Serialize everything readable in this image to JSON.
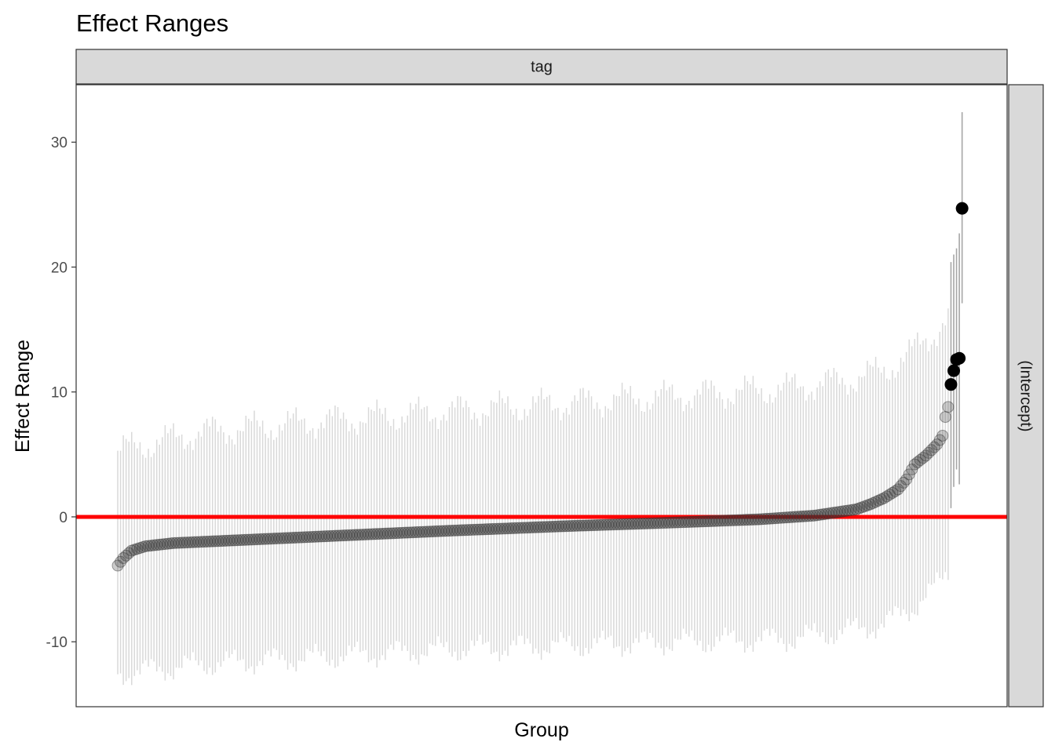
{
  "chart_data": {
    "type": "scatter",
    "title": "Effect Ranges",
    "xlabel": "Group",
    "ylabel": "Effect Range",
    "facet_top_label": "tag",
    "facet_right_label": "(Intercept)",
    "ylim": [
      -15.2,
      34.6
    ],
    "yticks": [
      -10,
      0,
      10,
      20,
      30
    ],
    "ytick_labels": [
      "-10",
      "0",
      "10",
      "20",
      "30"
    ],
    "reference_line": 0,
    "grid": false,
    "n_groups": 299,
    "series": [
      {
        "point_estimate_anchors": [
          [
            0,
            -3.9
          ],
          [
            2,
            -3.3
          ],
          [
            5,
            -2.7
          ],
          [
            10,
            -2.35
          ],
          [
            20,
            -2.1
          ],
          [
            40,
            -1.9
          ],
          [
            80,
            -1.5
          ],
          [
            120,
            -1.1
          ],
          [
            160,
            -0.75
          ],
          [
            200,
            -0.45
          ],
          [
            230,
            -0.2
          ],
          [
            250,
            0.1
          ],
          [
            265,
            0.6
          ],
          [
            270,
            1.0
          ],
          [
            275,
            1.5
          ],
          [
            280,
            2.2
          ],
          [
            283,
            3.0
          ],
          [
            286,
            4.2
          ],
          [
            290,
            4.9
          ],
          [
            294,
            5.8
          ],
          [
            296,
            6.5
          ],
          [
            297,
            8.0
          ],
          [
            298,
            8.8
          ]
        ],
        "interval_anchors": [
          [
            0,
            5.3,
            -12.6
          ],
          [
            30,
            6.8,
            -11.8
          ],
          [
            75,
            7.7,
            -11.2
          ],
          [
            120,
            8.5,
            -10.6
          ],
          [
            160,
            9.1,
            -10.3
          ],
          [
            200,
            9.7,
            -10.0
          ],
          [
            240,
            10.3,
            -9.8
          ],
          [
            260,
            10.9,
            -9.2
          ],
          [
            275,
            11.7,
            -8.6
          ],
          [
            285,
            13.2,
            -7.3
          ],
          [
            292,
            14.5,
            -6.0
          ],
          [
            298,
            16.0,
            -4.5
          ]
        ],
        "color": "#333333"
      },
      {
        "points": [
          {
            "x": 299,
            "y": 10.6,
            "hi": 20.4,
            "lo": 0.7
          },
          {
            "x": 300,
            "y": 11.7,
            "hi": 21.0,
            "lo": 2.4
          },
          {
            "x": 301,
            "y": 12.6,
            "hi": 21.5,
            "lo": 3.8
          },
          {
            "x": 302,
            "y": 12.7,
            "hi": 22.7,
            "lo": 2.6
          },
          {
            "x": 303,
            "y": 24.7,
            "hi": 32.4,
            "lo": 17.1
          }
        ],
        "color": "#000000"
      }
    ],
    "colors": {
      "interval": "#d9d9d9",
      "interval_emphasis": "#a6a6a6",
      "point": "#333333",
      "point_emphasis": "#000000",
      "reference_line": "#ff0000",
      "strip": "#d9d9d9",
      "border": "#333333"
    }
  }
}
